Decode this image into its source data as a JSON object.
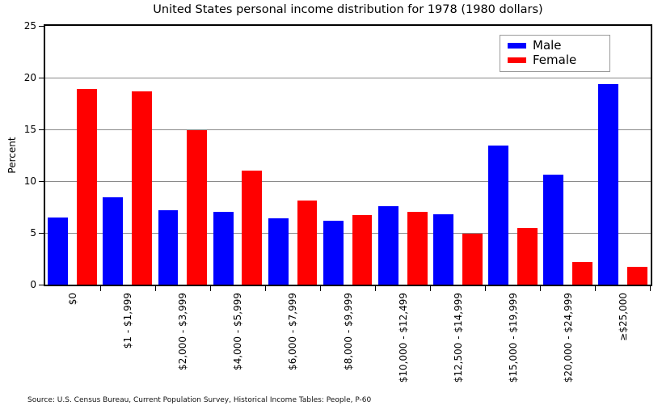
{
  "source_note": "Source: U.S. Census Bureau, Current Population Survey, Historical Income Tables: People, P-60",
  "chart_data": {
    "type": "bar",
    "title": "United States personal income distribution for 1978 (1980 dollars)",
    "xlabel": "",
    "ylabel": "Percent",
    "ylim": [
      0,
      25
    ],
    "yticks": [
      0,
      5,
      10,
      15,
      20,
      25
    ],
    "grid": true,
    "legend_position": "upper right",
    "categories": [
      "$0",
      "$1 - $1,999",
      "$2,000 - $3,999",
      "$4,000 - $5,999",
      "$6,000 - $7,999",
      "$8,000 - $9,999",
      "$10,000 - $12,499",
      "$12,500 - $14,999",
      "$15,000 - $19,999",
      "$20,000 - $24,999",
      "≥$25,000"
    ],
    "series": [
      {
        "name": "Male",
        "color": "#0000ff",
        "values": [
          6.5,
          8.4,
          7.2,
          7.0,
          6.4,
          6.2,
          7.6,
          6.8,
          13.4,
          10.6,
          19.4
        ]
      },
      {
        "name": "Female",
        "color": "#ff0000",
        "values": [
          18.9,
          18.7,
          14.9,
          11.0,
          8.1,
          6.7,
          7.0,
          4.9,
          5.5,
          2.2,
          1.7
        ]
      }
    ],
    "colors": {
      "grid": "#8a8a8a",
      "frame": "#000000",
      "background": "#ffffff"
    }
  }
}
